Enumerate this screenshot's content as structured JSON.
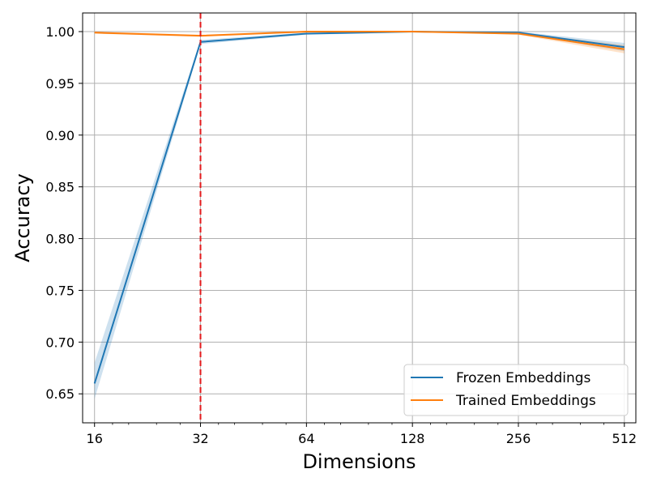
{
  "chart_data": {
    "type": "line",
    "x_scale": "log2",
    "x": [
      16,
      32,
      64,
      128,
      256,
      512
    ],
    "x_tick_labels": [
      "16",
      "32",
      "64",
      "128",
      "256",
      "512"
    ],
    "xlim": [
      14.8,
      552
    ],
    "ylim": [
      0.622,
      1.018
    ],
    "y_ticks": [
      0.65,
      0.7,
      0.75,
      0.8,
      0.85,
      0.9,
      0.95,
      1.0
    ],
    "y_tick_labels": [
      "0.65",
      "0.70",
      "0.75",
      "0.80",
      "0.85",
      "0.90",
      "0.95",
      "1.00"
    ],
    "xlabel": "Dimensions",
    "ylabel": "Accuracy",
    "grid": true,
    "legend_position": "bottom-right",
    "vertical_line": {
      "x": 32,
      "color": "#e41a1c",
      "style": "dashed"
    },
    "series": [
      {
        "name": "Frozen Embeddings",
        "color": "#1f77b4",
        "values": [
          0.66,
          0.99,
          0.998,
          1.0,
          0.999,
          0.985
        ],
        "lower": [
          0.645,
          0.988,
          0.997,
          0.999,
          0.998,
          0.981
        ],
        "upper": [
          0.68,
          0.992,
          0.999,
          1.0,
          1.0,
          0.989
        ]
      },
      {
        "name": "Trained Embeddings",
        "color": "#ff7f0e",
        "values": [
          0.999,
          0.996,
          1.0,
          1.0,
          0.998,
          0.983
        ],
        "lower": [
          0.998,
          0.995,
          0.999,
          1.0,
          0.997,
          0.979
        ],
        "upper": [
          1.0,
          0.997,
          1.0,
          1.0,
          0.999,
          0.987
        ]
      }
    ]
  }
}
